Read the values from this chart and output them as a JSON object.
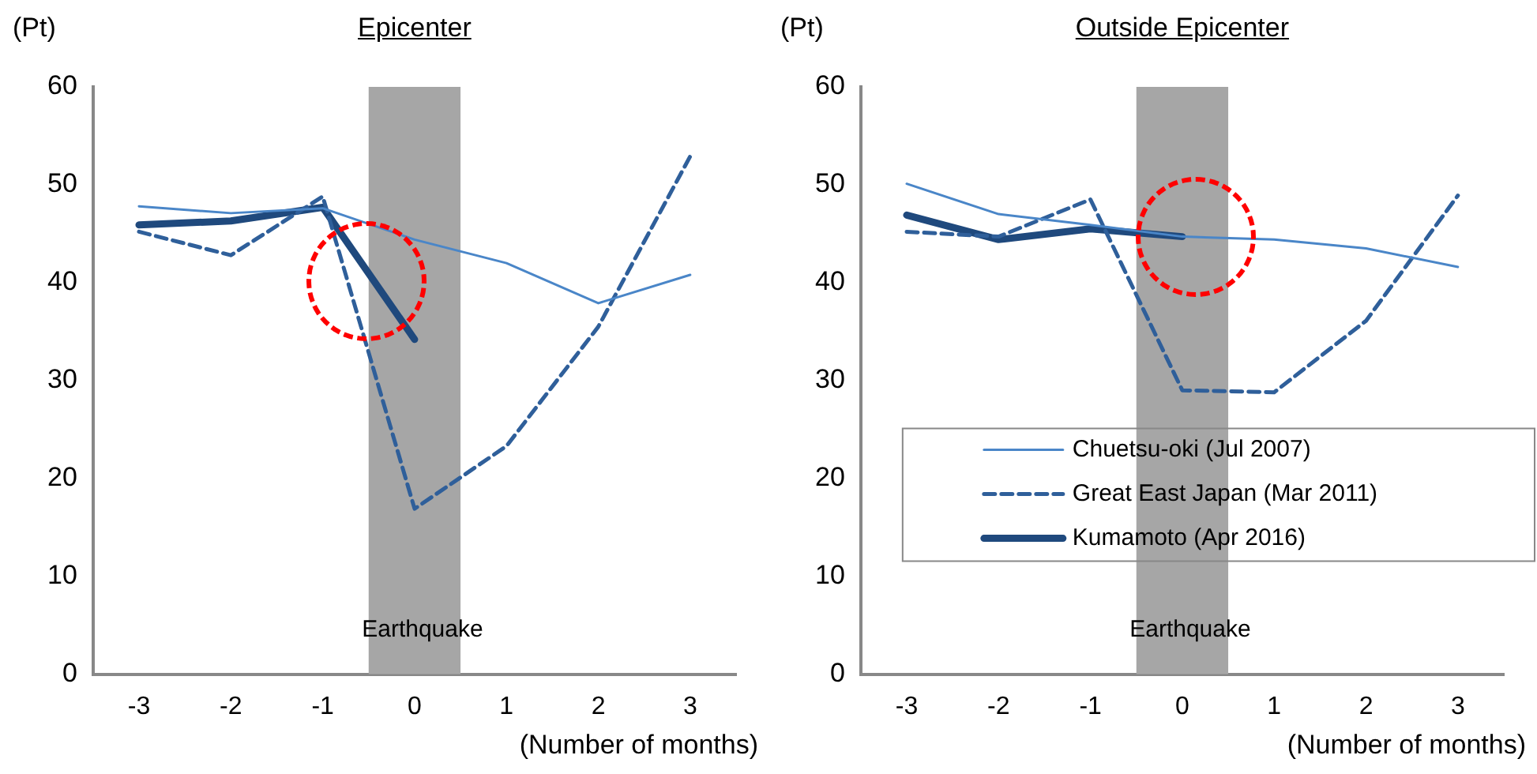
{
  "chart_data": [
    {
      "type": "line",
      "title": "Epicenter",
      "ylabel": "(Pt)",
      "xlabel": "(Number of months)",
      "categories": [
        "-3",
        "-2",
        "-1",
        "0",
        "1",
        "2",
        "3"
      ],
      "ylim": [
        0,
        60
      ],
      "yticks": [
        0,
        10,
        20,
        30,
        40,
        50,
        60
      ],
      "grid": false,
      "legend": false,
      "marker": "none",
      "bands": [
        {
          "axis": "x",
          "from": "0",
          "to": "0",
          "label": "Earthquake",
          "color": "#a6a6a6"
        }
      ],
      "series": [
        {
          "color": "#4a86c8",
          "line_style": "solid",
          "values": [
            47.8,
            47.1,
            47.6,
            44.4,
            42.0,
            37.9,
            40.8
          ]
        },
        {
          "color": "#2f5f9a",
          "line_style": "dashed",
          "values": [
            45.2,
            42.8,
            48.8,
            16.9,
            23.3,
            35.5,
            52.9
          ]
        },
        {
          "color": "#1f497d",
          "line_style": "solid",
          "values": [
            45.9,
            46.3,
            47.7,
            34.2,
            null,
            null,
            null
          ]
        }
      ]
    },
    {
      "type": "line",
      "title": "Outside Epicenter",
      "ylabel": "(Pt)",
      "xlabel": "(Number of months)",
      "categories": [
        "-3",
        "-2",
        "-1",
        "0",
        "1",
        "2",
        "3"
      ],
      "ylim": [
        0,
        60
      ],
      "yticks": [
        0,
        10,
        20,
        30,
        40,
        50,
        60
      ],
      "grid": false,
      "legend": "bottom",
      "marker": "none",
      "bands": [
        {
          "axis": "x",
          "from": "0",
          "to": "0",
          "label": "Earthquake",
          "color": "#a6a6a6"
        }
      ],
      "series": [
        {
          "name": "Chuetsu-oki (Jul 2007)",
          "color": "#4a86c8",
          "line_style": "solid",
          "values": [
            50.1,
            47.0,
            45.9,
            44.7,
            44.4,
            43.5,
            41.6
          ]
        },
        {
          "name": "Great East Japan (Mar 2011)",
          "color": "#2f5f9a",
          "line_style": "dashed",
          "values": [
            45.2,
            44.7,
            48.5,
            29.0,
            28.8,
            36.1,
            48.9
          ]
        },
        {
          "name": "Kumamoto (Apr 2016)",
          "color": "#1f497d",
          "line_style": "solid",
          "values": [
            46.9,
            44.4,
            45.5,
            44.7,
            null,
            null,
            null
          ]
        }
      ]
    }
  ]
}
